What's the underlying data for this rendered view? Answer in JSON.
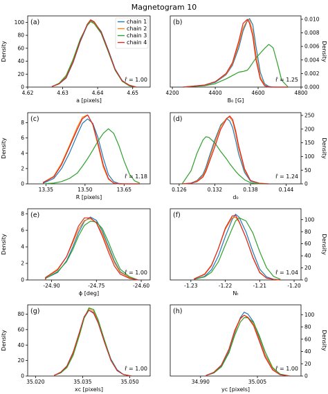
{
  "figure": {
    "title": "Magnetogram 10"
  },
  "legend_labels": [
    "chain 1",
    "chain 2",
    "chain 3",
    "chain 4"
  ],
  "series_colors": [
    "#1f77b4",
    "#ff7f0e",
    "#2ca02c",
    "#d62728"
  ],
  "chart_data": [
    {
      "type": "line",
      "panel": "(a)",
      "xlabel": "a [pixels]",
      "ylabel": "Density",
      "xlim": [
        4.62,
        4.655
      ],
      "ylim": [
        0,
        110
      ],
      "xticks": [
        "4.62",
        "4.63",
        "4.64",
        "4.65"
      ],
      "xtick_values": [
        4.62,
        4.63,
        4.64,
        4.65
      ],
      "yticks": [
        "0",
        "20",
        "40",
        "60",
        "80",
        "100"
      ],
      "ytick_values": [
        0,
        20,
        40,
        60,
        80,
        100
      ],
      "rhat": "r̂ = 1.00",
      "x": [
        4.627,
        4.629,
        4.631,
        4.633,
        4.635,
        4.637,
        4.638,
        4.639,
        4.641,
        4.643,
        4.645,
        4.647,
        4.649,
        4.651
      ],
      "series": [
        {
          "name": "chain 1",
          "values": [
            1,
            5,
            14,
            38,
            70,
            95,
            103,
            100,
            86,
            58,
            28,
            10,
            3,
            0
          ]
        },
        {
          "name": "chain 2",
          "values": [
            1,
            5,
            16,
            40,
            72,
            96,
            102,
            99,
            84,
            56,
            27,
            9,
            3,
            0
          ]
        },
        {
          "name": "chain 3",
          "values": [
            1,
            6,
            18,
            43,
            74,
            95,
            101,
            98,
            83,
            55,
            26,
            9,
            2,
            0
          ]
        },
        {
          "name": "chain 4",
          "values": [
            1,
            5,
            15,
            39,
            71,
            97,
            104,
            101,
            85,
            57,
            27,
            10,
            3,
            0
          ]
        }
      ]
    },
    {
      "type": "line",
      "panel": "(b)",
      "xlabel": "B₀ [G]",
      "ylabel": "Density",
      "xlim": [
        4190,
        4800
      ],
      "ylim": [
        0,
        0.0105
      ],
      "xticks": [
        "4200",
        "4400",
        "4600",
        "4800"
      ],
      "xtick_values": [
        4200,
        4400,
        4600,
        4800
      ],
      "yticks": [
        "0.000",
        "0.002",
        "0.004",
        "0.006",
        "0.008",
        "0.010"
      ],
      "ytick_values": [
        0,
        0.002,
        0.004,
        0.006,
        0.008,
        0.01
      ],
      "rhat": "r̂ = 1.25",
      "x": [
        4250,
        4350,
        4400,
        4450,
        4480,
        4510,
        4530,
        4550,
        4560,
        4575,
        4590,
        4610,
        4630,
        4650,
        4670,
        4690,
        4710,
        4740
      ],
      "series": [
        {
          "name": "chain 1",
          "values": [
            0,
            0.0003,
            0.0007,
            0.0018,
            0.0032,
            0.0058,
            0.0083,
            0.0098,
            0.0101,
            0.0092,
            0.006,
            0.0022,
            0.0005,
            0.0001,
            0,
            0,
            0,
            0
          ]
        },
        {
          "name": "chain 2",
          "values": [
            0,
            0.0003,
            0.0008,
            0.0019,
            0.0034,
            0.0063,
            0.0087,
            0.0099,
            0.0098,
            0.0082,
            0.0048,
            0.0015,
            0.0003,
            0,
            0,
            0,
            0,
            0
          ]
        },
        {
          "name": "chain 3",
          "values": [
            0,
            0.0002,
            0.0005,
            0.0012,
            0.0017,
            0.0022,
            0.0023,
            0.0025,
            0.0029,
            0.0036,
            0.0043,
            0.005,
            0.0057,
            0.0063,
            0.0058,
            0.0035,
            0.001,
            0
          ]
        },
        {
          "name": "chain 4",
          "values": [
            0,
            0.0003,
            0.0008,
            0.002,
            0.0036,
            0.0068,
            0.0094,
            0.01,
            0.0094,
            0.0075,
            0.004,
            0.0012,
            0.0002,
            0,
            0,
            0,
            0,
            0
          ]
        }
      ]
    },
    {
      "type": "line",
      "panel": "(c)",
      "xlabel": "R [pixels]",
      "ylabel": "Density",
      "xlim": [
        13.28,
        13.75
      ],
      "ylim": [
        0,
        9.3
      ],
      "xticks": [
        "13.35",
        "13.50",
        "13.65"
      ],
      "xtick_values": [
        13.35,
        13.5,
        13.65
      ],
      "yticks": [
        "0",
        "2",
        "4",
        "6",
        "8"
      ],
      "ytick_values": [
        0,
        2,
        4,
        6,
        8
      ],
      "rhat": "r̂ = 1.18",
      "x": [
        13.34,
        13.38,
        13.41,
        13.44,
        13.47,
        13.49,
        13.51,
        13.53,
        13.55,
        13.57,
        13.59,
        13.61,
        13.63,
        13.65,
        13.67,
        13.69,
        13.71
      ],
      "series": [
        {
          "name": "chain 1",
          "values": [
            0.1,
            0.7,
            2.0,
            4.0,
            6.4,
            7.9,
            8.5,
            7.9,
            6.0,
            3.4,
            1.2,
            0.3,
            0.05,
            0,
            0,
            0,
            0
          ]
        },
        {
          "name": "chain 2",
          "values": [
            0.2,
            1.0,
            2.7,
            5.0,
            7.4,
            8.7,
            9.0,
            7.7,
            5.0,
            2.2,
            0.6,
            0.1,
            0,
            0,
            0,
            0,
            0
          ]
        },
        {
          "name": "chain 3",
          "values": [
            0,
            0.1,
            0.3,
            0.7,
            1.4,
            2.3,
            3.3,
            4.4,
            5.6,
            6.6,
            7.2,
            6.6,
            5.0,
            3.0,
            1.3,
            0.4,
            0.1
          ]
        },
        {
          "name": "chain 4",
          "values": [
            0.2,
            0.9,
            2.5,
            4.8,
            7.1,
            8.5,
            9.0,
            7.8,
            5.3,
            2.5,
            0.7,
            0.1,
            0,
            0,
            0,
            0,
            0
          ]
        }
      ]
    },
    {
      "type": "line",
      "panel": "(d)",
      "xlabel": "d₀",
      "ylabel": "Density",
      "xlim": [
        0.1245,
        0.1465
      ],
      "ylim": [
        0,
        260
      ],
      "xticks": [
        "0.126",
        "0.132",
        "0.138",
        "0.144"
      ],
      "xtick_values": [
        0.126,
        0.132,
        0.138,
        0.144
      ],
      "yticks": [
        "0",
        "50",
        "100",
        "150",
        "200",
        "250"
      ],
      "ytick_values": [
        0,
        50,
        100,
        150,
        200,
        250
      ],
      "rhat": "r̂ = 1.24",
      "x": [
        0.1265,
        0.128,
        0.129,
        0.13,
        0.1305,
        0.131,
        0.132,
        0.133,
        0.134,
        0.1345,
        0.135,
        0.1355,
        0.136,
        0.137,
        0.138,
        0.1395,
        0.141
      ],
      "series": [
        {
          "name": "chain 1",
          "values": [
            0,
            3,
            12,
            35,
            60,
            95,
            160,
            215,
            238,
            230,
            205,
            160,
            110,
            42,
            10,
            2,
            0
          ]
        },
        {
          "name": "chain 2",
          "values": [
            0,
            2,
            10,
            30,
            52,
            85,
            150,
            210,
            240,
            244,
            228,
            185,
            130,
            50,
            12,
            2,
            0
          ]
        },
        {
          "name": "chain 3",
          "values": [
            0,
            48,
            112,
            160,
            172,
            170,
            150,
            118,
            90,
            74,
            60,
            46,
            34,
            15,
            4,
            0,
            0
          ]
        },
        {
          "name": "chain 4",
          "values": [
            0,
            2,
            8,
            25,
            45,
            75,
            135,
            200,
            238,
            248,
            235,
            195,
            140,
            55,
            12,
            2,
            0
          ]
        }
      ]
    },
    {
      "type": "line",
      "panel": "(e)",
      "xlabel": "ϕ [deg]",
      "ylabel": "Density",
      "xlim": [
        -24.98,
        -24.57
      ],
      "ylim": [
        0,
        8.6
      ],
      "xticks": [
        "-24.90",
        "-24.75",
        "-24.60"
      ],
      "xtick_values": [
        -24.9,
        -24.75,
        -24.6
      ],
      "yticks": [
        "0",
        "2",
        "4",
        "6",
        "8"
      ],
      "ytick_values": [
        0,
        2,
        4,
        6,
        8
      ],
      "rhat": "r̂ = 1.00",
      "x": [
        -24.92,
        -24.88,
        -24.85,
        -24.83,
        -24.81,
        -24.79,
        -24.77,
        -24.75,
        -24.73,
        -24.71,
        -24.69,
        -24.67,
        -24.64,
        -24.61
      ],
      "series": [
        {
          "name": "chain 1",
          "values": [
            0.2,
            0.9,
            2.3,
            3.9,
            5.7,
            7.1,
            7.6,
            7.2,
            5.9,
            4.1,
            2.3,
            1.0,
            0.3,
            0
          ]
        },
        {
          "name": "chain 2",
          "values": [
            0.3,
            1.3,
            2.8,
            4.4,
            6.1,
            7.2,
            7.4,
            6.9,
            5.6,
            3.8,
            2.1,
            0.9,
            0.3,
            0
          ]
        },
        {
          "name": "chain 3",
          "values": [
            0.2,
            1.0,
            2.2,
            3.6,
            5.3,
            6.6,
            7.1,
            7.0,
            6.2,
            4.6,
            2.8,
            1.3,
            0.4,
            0
          ]
        },
        {
          "name": "chain 4",
          "values": [
            0.3,
            1.2,
            2.8,
            4.6,
            6.5,
            7.5,
            7.5,
            6.9,
            5.3,
            3.4,
            1.7,
            0.7,
            0.2,
            0
          ]
        }
      ]
    },
    {
      "type": "line",
      "panel": "(f)",
      "xlabel": "Nₜ",
      "ylabel": "Density",
      "xlim": [
        -1.236,
        -1.198
      ],
      "ylim": [
        0,
        118
      ],
      "xticks": [
        "-1.23",
        "-1.22",
        "-1.21",
        "-1.20"
      ],
      "xtick_values": [
        -1.23,
        -1.22,
        -1.21,
        -1.2
      ],
      "yticks": [
        "0",
        "20",
        "40",
        "60",
        "80",
        "100"
      ],
      "ytick_values": [
        0,
        20,
        40,
        60,
        80,
        100
      ],
      "rhat": "r̂ = 1.04",
      "x": [
        -1.229,
        -1.226,
        -1.224,
        -1.222,
        -1.22,
        -1.218,
        -1.217,
        -1.216,
        -1.214,
        -1.212,
        -1.21,
        -1.208,
        -1.206,
        -1.204
      ],
      "series": [
        {
          "name": "chain 1",
          "values": [
            1,
            6,
            17,
            40,
            72,
            100,
            109,
            104,
            80,
            47,
            18,
            5,
            1,
            0
          ]
        },
        {
          "name": "chain 2",
          "values": [
            2,
            10,
            25,
            52,
            84,
            103,
            104,
            96,
            70,
            38,
            13,
            3,
            1,
            0
          ]
        },
        {
          "name": "chain 3",
          "values": [
            1,
            5,
            13,
            30,
            58,
            85,
            98,
            103,
            98,
            78,
            47,
            20,
            6,
            1
          ]
        },
        {
          "name": "chain 4",
          "values": [
            2,
            9,
            24,
            52,
            86,
            106,
            107,
            97,
            70,
            37,
            12,
            3,
            1,
            0
          ]
        }
      ]
    },
    {
      "type": "line",
      "panel": "(g)",
      "xlabel": "xᴄ [pixels]",
      "ylabel": "Density",
      "xlim": [
        35.0175,
        35.0565
      ],
      "ylim": [
        0,
        92
      ],
      "xticks": [
        "35.020",
        "35.035",
        "35.050"
      ],
      "xtick_values": [
        35.02,
        35.035,
        35.05
      ],
      "yticks": [
        "0",
        "20",
        "40",
        "60",
        "80"
      ],
      "ytick_values": [
        0,
        20,
        40,
        60,
        80
      ],
      "rhat": "r̂ = 1.00",
      "x": [
        35.026,
        35.028,
        35.03,
        35.032,
        35.034,
        35.0355,
        35.037,
        35.0385,
        35.04,
        35.042,
        35.044,
        35.046,
        35.048,
        35.0505
      ],
      "series": [
        {
          "name": "chain 1",
          "values": [
            1,
            4,
            12,
            29,
            55,
            75,
            85,
            82,
            70,
            45,
            22,
            8,
            2,
            0
          ]
        },
        {
          "name": "chain 2",
          "values": [
            1,
            4,
            11,
            28,
            54,
            76,
            87,
            84,
            71,
            45,
            21,
            7,
            2,
            0
          ]
        },
        {
          "name": "chain 3",
          "values": [
            1,
            4,
            11,
            27,
            53,
            75,
            88,
            86,
            72,
            46,
            21,
            7,
            2,
            0
          ]
        },
        {
          "name": "chain 4",
          "values": [
            1,
            5,
            13,
            31,
            57,
            77,
            85,
            81,
            68,
            43,
            20,
            7,
            2,
            0
          ]
        }
      ]
    },
    {
      "type": "line",
      "panel": "(h)",
      "xlabel": "yᴄ [pixels]",
      "ylabel": "Density",
      "xlim": [
        34.982,
        35.0165
      ],
      "ylim": [
        0,
        116
      ],
      "xticks": [
        "34.990",
        "35.005"
      ],
      "xtick_values": [
        34.99,
        35.005
      ],
      "yticks": [
        "0",
        "20",
        "40",
        "60",
        "80",
        "100"
      ],
      "ytick_values": [
        0,
        20,
        40,
        60,
        80,
        100
      ],
      "rhat": "r̂ = 1.00",
      "x": [
        34.9915,
        34.9935,
        34.9955,
        34.9975,
        34.999,
        35.0005,
        35.0015,
        35.0025,
        35.004,
        35.0055,
        35.007,
        35.009,
        35.011,
        35.0135
      ],
      "series": [
        {
          "name": "chain 1",
          "values": [
            1,
            5,
            16,
            40,
            70,
            95,
            104,
            101,
            88,
            62,
            35,
            12,
            3,
            0
          ]
        },
        {
          "name": "chain 2",
          "values": [
            1,
            6,
            18,
            43,
            72,
            93,
            99,
            96,
            84,
            60,
            34,
            12,
            3,
            0
          ]
        },
        {
          "name": "chain 3",
          "values": [
            1,
            5,
            15,
            38,
            66,
            88,
            95,
            95,
            87,
            66,
            40,
            14,
            3,
            0
          ]
        },
        {
          "name": "chain 4",
          "values": [
            1,
            6,
            18,
            44,
            74,
            94,
            99,
            95,
            82,
            57,
            31,
            10,
            2,
            0
          ]
        }
      ]
    }
  ]
}
